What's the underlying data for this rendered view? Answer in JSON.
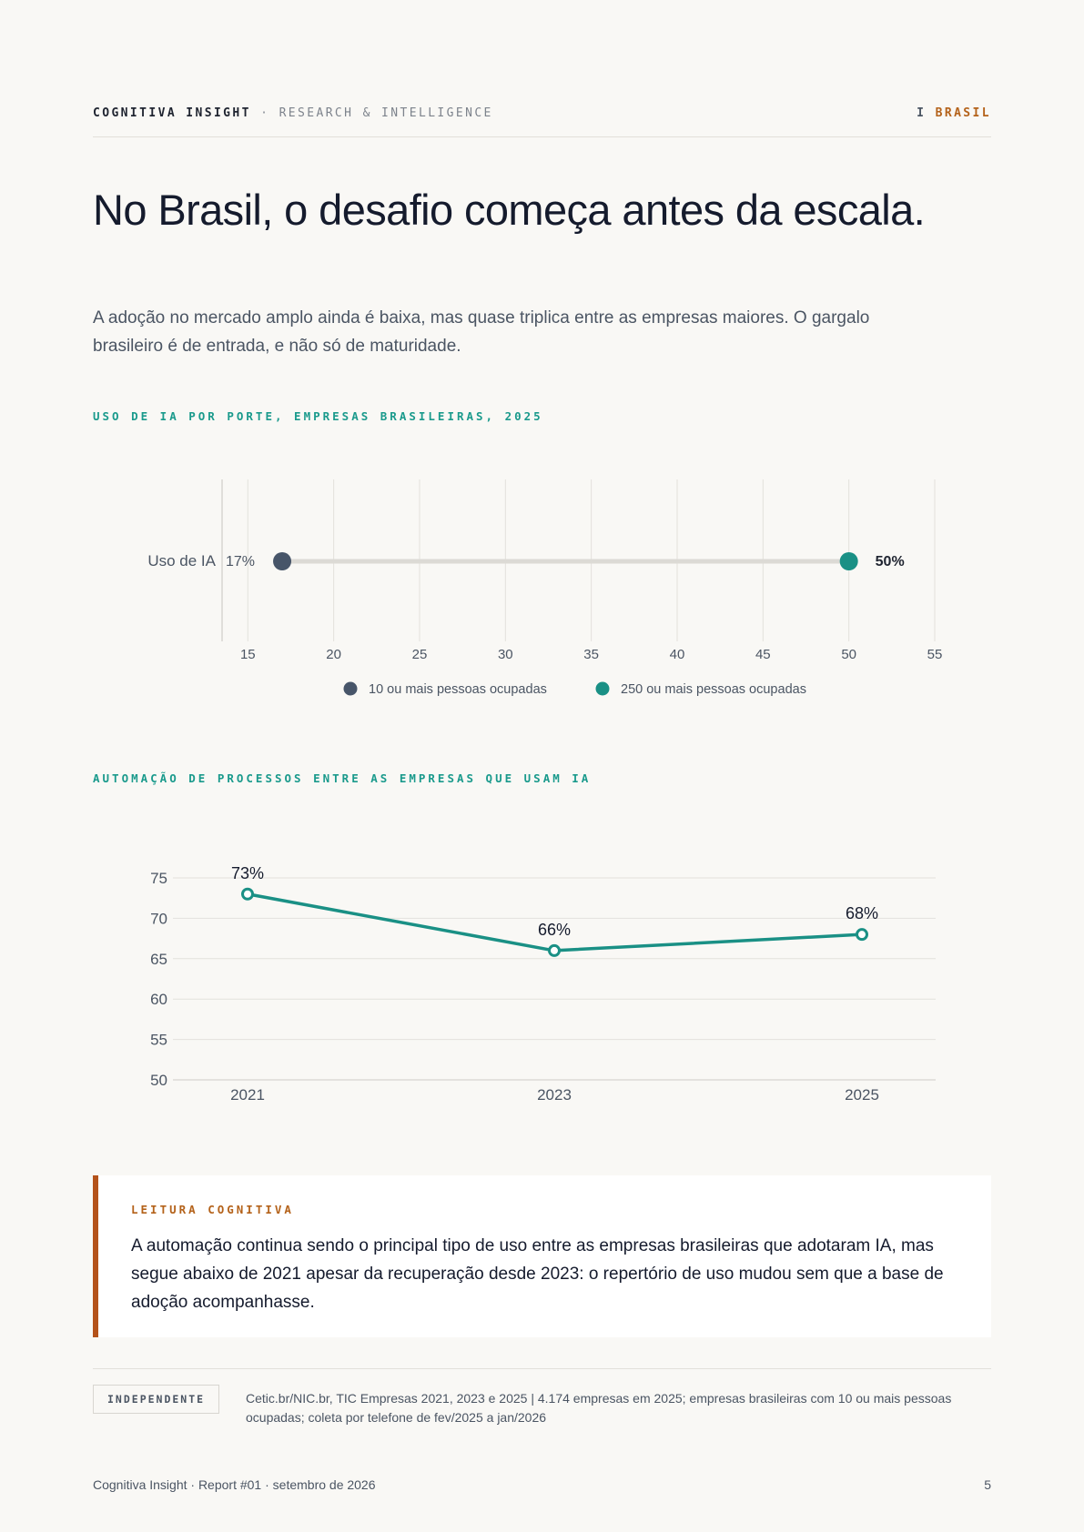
{
  "header": {
    "brand": "COGNITIVA INSIGHT",
    "separator": "·",
    "subtitle": "RESEARCH & INTELLIGENCE",
    "region_prefix": "I",
    "region": "BRASIL"
  },
  "title": "No Brasil, o desafio começa antes da escala.",
  "lead": "A adoção no mercado amplo ainda é baixa, mas quase triplica entre as empresas maiores. O gargalo brasileiro é de entrada, e não só de maturidade.",
  "colors": {
    "teal": "#1a9085",
    "slate": "#475569",
    "orange": "#b4621a"
  },
  "chart_data": [
    {
      "type": "dumbbell",
      "title": "USO DE IA POR PORTE, EMPRESAS BRASILEIRAS, 2025",
      "categories": [
        "Uso de IA"
      ],
      "series": [
        {
          "name": "10 ou mais pessoas ocupadas",
          "values": [
            17
          ],
          "label": "17%",
          "color": "#475569"
        },
        {
          "name": "250 ou mais pessoas ocupadas",
          "values": [
            50
          ],
          "label": "50%",
          "color": "#1a9085"
        }
      ],
      "xlim": [
        13.5,
        55
      ],
      "xticks": [
        "15",
        "20",
        "25",
        "30",
        "35",
        "40",
        "45",
        "50",
        "55"
      ],
      "xtick_values": [
        15,
        20,
        25,
        30,
        35,
        40,
        45,
        50,
        55
      ],
      "grid": true,
      "legend": "bottom"
    },
    {
      "type": "line",
      "title": "AUTOMAÇÃO DE PROCESSOS ENTRE AS EMPRESAS QUE USAM IA",
      "x": [
        "2021",
        "2023",
        "2025"
      ],
      "series": [
        {
          "values": [
            73,
            66,
            68
          ],
          "labels": [
            "73%",
            "66%",
            "68%"
          ],
          "color": "#1a9085"
        }
      ],
      "ylim": [
        50,
        75
      ],
      "yticks": [
        "75",
        "70",
        "65",
        "60",
        "55",
        "50"
      ],
      "ytick_values": [
        75,
        70,
        65,
        60,
        55,
        50
      ],
      "grid": true
    }
  ],
  "callout": {
    "label": "LEITURA COGNITIVA",
    "text": "A automação continua sendo o principal tipo de uso entre as empresas brasileiras que adotaram IA, mas segue abaixo de 2021 apesar da recuperação desde 2023: o repertório de uso mudou sem que a base de adoção acompanhasse."
  },
  "source": {
    "badge": "INDEPENDENTE",
    "text": "Cetic.br/NIC.br, TIC Empresas 2021, 2023 e 2025 | 4.174 empresas em 2025; empresas brasileiras com 10 ou mais pessoas ocupadas; coleta por telefone de fev/2025 a jan/2026"
  },
  "footer": {
    "left": "Cognitiva Insight · Report #01 · setembro de 2026",
    "page": "5"
  }
}
